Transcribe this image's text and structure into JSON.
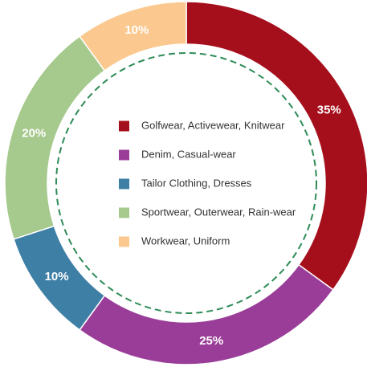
{
  "chart_data": {
    "type": "pie",
    "variant": "donut",
    "categories": [
      "Golfwear, Activewear, Knitwear",
      "Denim, Casual-wear",
      "Tailor Clothing, Dresses",
      "Sportwear, Outerwear, Rain-wear",
      "Workwear, Uniform"
    ],
    "values": [
      35,
      25,
      10,
      20,
      10
    ],
    "value_labels": [
      "35%",
      "25%",
      "10%",
      "20%",
      "10%"
    ],
    "colors": [
      "#a50f1c",
      "#9a3d98",
      "#3e7fa6",
      "#a6c98d",
      "#fbc98f"
    ],
    "legend_position": "center",
    "inner_ring": "dashed-green",
    "inner_ring_color": "#2e8b57",
    "title": "",
    "start_angle_deg": 0,
    "direction": "clockwise"
  }
}
